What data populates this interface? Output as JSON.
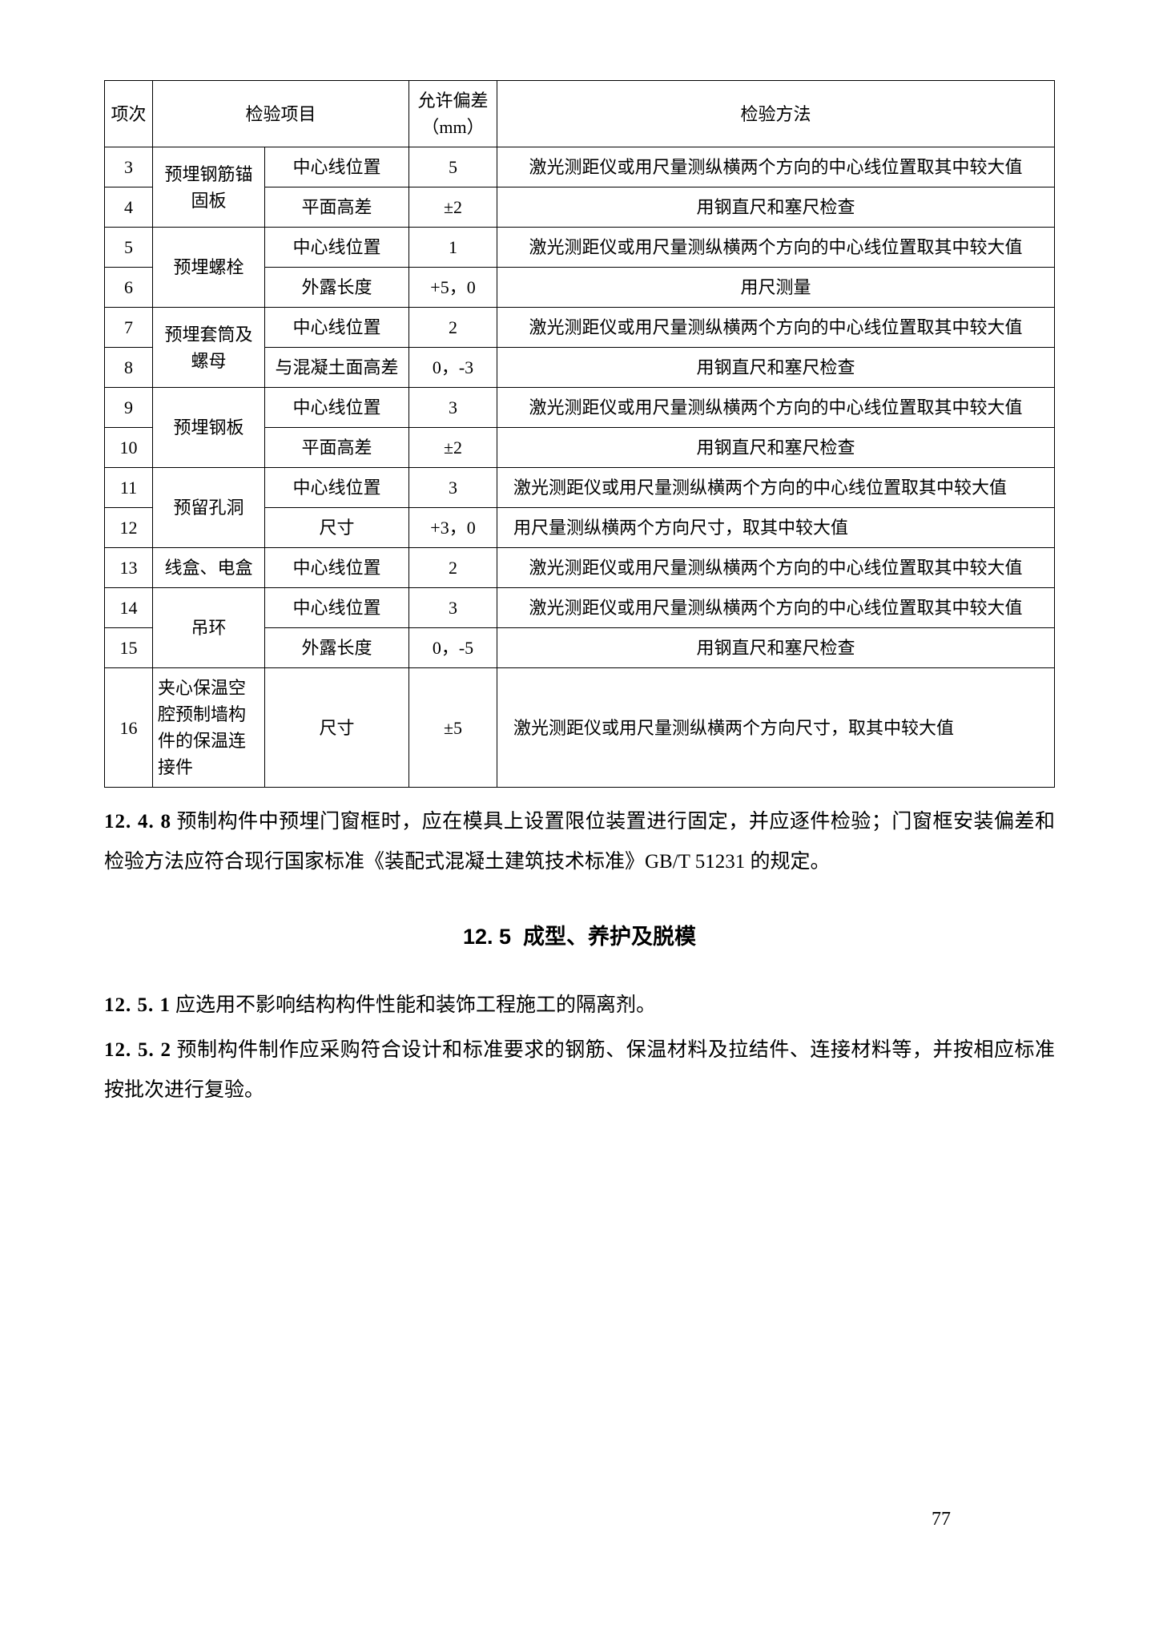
{
  "table": {
    "headers": {
      "no": "项次",
      "item": "检验项目",
      "tolerance": "允许偏差\n（mm）",
      "method": "检验方法"
    },
    "groups": [
      {
        "category": "预埋钢筋锚固板",
        "rows": [
          {
            "no": "3",
            "item": "中心线位置",
            "tol": "5",
            "method": "激光测距仪或用尺量测纵横两个方向的中心线位置取其中较大值"
          },
          {
            "no": "4",
            "item": "平面高差",
            "tol": "±2",
            "method": "用钢直尺和塞尺检查"
          }
        ]
      },
      {
        "category": "预埋螺栓",
        "rows": [
          {
            "no": "5",
            "item": "中心线位置",
            "tol": "1",
            "method": "激光测距仪或用尺量测纵横两个方向的中心线位置取其中较大值"
          },
          {
            "no": "6",
            "item": "外露长度",
            "tol": "+5，0",
            "method": "用尺测量"
          }
        ]
      },
      {
        "category": "预埋套筒及螺母",
        "rows": [
          {
            "no": "7",
            "item": "中心线位置",
            "tol": "2",
            "method": "激光测距仪或用尺量测纵横两个方向的中心线位置取其中较大值"
          },
          {
            "no": "8",
            "item": "与混凝土面高差",
            "tol": "0，-3",
            "method": "用钢直尺和塞尺检查"
          }
        ]
      },
      {
        "category": "预埋钢板",
        "rows": [
          {
            "no": "9",
            "item": "中心线位置",
            "tol": "3",
            "method": "激光测距仪或用尺量测纵横两个方向的中心线位置取其中较大值"
          },
          {
            "no": "10",
            "item": "平面高差",
            "tol": "±2",
            "method": "用钢直尺和塞尺检查"
          }
        ]
      },
      {
        "category": "预留孔洞",
        "rows": [
          {
            "no": "11",
            "item": "中心线位置",
            "tol": "3",
            "method": "激光测距仪或用尺量测纵横两个方向的中心线位置取其中较大值",
            "methodLeft": true
          },
          {
            "no": "12",
            "item": "尺寸",
            "tol": "+3，0",
            "method": "用尺量测纵横两个方向尺寸，取其中较大值",
            "methodLeft": true
          }
        ]
      },
      {
        "category": "线盒、电盒",
        "single": true,
        "rows": [
          {
            "no": "13",
            "item": "中心线位置",
            "tol": "2",
            "method": "激光测距仪或用尺量测纵横两个方向的中心线位置取其中较大值"
          }
        ]
      },
      {
        "category": "吊环",
        "rows": [
          {
            "no": "14",
            "item": "中心线位置",
            "tol": "3",
            "method": "激光测距仪或用尺量测纵横两个方向的中心线位置取其中较大值"
          },
          {
            "no": "15",
            "item": "外露长度",
            "tol": "0，-5",
            "method": "用钢直尺和塞尺检查"
          }
        ]
      },
      {
        "category": "夹心保温空腔预制墙构件的保温连接件",
        "single": true,
        "catLeft": true,
        "rows": [
          {
            "no": "16",
            "item": "尺寸",
            "tol": "±5",
            "method": "激光测距仪或用尺量测纵横两个方向尺寸，取其中较大值",
            "methodLeft": true
          }
        ]
      }
    ]
  },
  "paragraphs": {
    "p1_num": "12. 4. 8",
    "p1": "预制构件中预埋门窗框时，应在模具上设置限位装置进行固定，并应逐件检验；门窗框安装偏差和检验方法应符合现行国家标准《装配式混凝土建筑技术标准》GB/T 51231 的规定。",
    "heading_num": "12. 5",
    "heading": "成型、养护及脱模",
    "p2_num": "12. 5. 1",
    "p2": "应选用不影响结构构件性能和装饰工程施工的隔离剂。",
    "p3_num": "12. 5. 2",
    "p3": "预制构件制作应采购符合设计和标准要求的钢筋、保温材料及拉结件、连接材料等，并按相应标准按批次进行复验。"
  },
  "pageNumber": "77"
}
